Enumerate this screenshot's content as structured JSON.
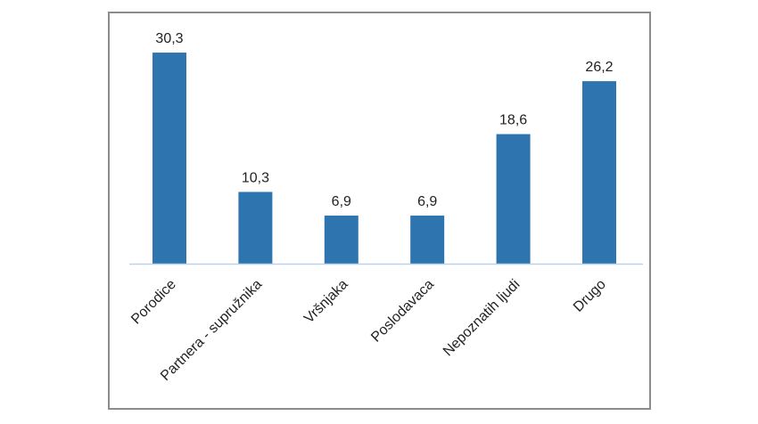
{
  "chart_data": {
    "type": "bar",
    "categories": [
      "Porodice",
      "Partnera - supružnika",
      "Vršnjaka",
      "Poslodavaca",
      "Nepoznatih ljudi",
      "Drugo"
    ],
    "values": [
      30.3,
      10.3,
      6.9,
      6.9,
      18.6,
      26.2
    ],
    "data_labels": [
      "30,3",
      "10,3",
      "6,9",
      "6,9",
      "18,6",
      "26,2"
    ],
    "title": "",
    "xlabel": "",
    "ylabel": "",
    "ylim": [
      0,
      35
    ],
    "grid": false,
    "legend": "none",
    "bar_color": "#2e75b0",
    "axis_color": "#b9d3ea"
  }
}
